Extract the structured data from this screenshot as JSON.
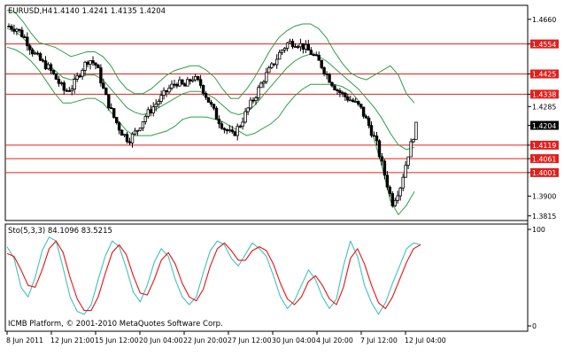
{
  "header": {
    "symbol": "EURUSD,H4",
    "ohlc": "1.4140 1.4241 1.4135 1.4204"
  },
  "watermark": "ICMB Platform, © 2001-2010 MetaQuotes Software Corp.",
  "chart_data": [
    {
      "type": "candlestick",
      "title": "EURUSD,H4",
      "ylim": [
        1.3795,
        1.472
      ],
      "y_ticks": [
        {
          "value": 1.466,
          "label": "1.4660"
        },
        {
          "value": 1.4554,
          "label": "1.4554"
        },
        {
          "value": 1.4425,
          "label": "1.4425"
        },
        {
          "value": 1.4338,
          "label": "1.4338"
        },
        {
          "value": 1.4285,
          "label": "1.4285"
        },
        {
          "value": 1.4204,
          "label": "1.4204"
        },
        {
          "value": 1.4119,
          "label": "1.4119"
        },
        {
          "value": 1.4061,
          "label": "1.4061"
        },
        {
          "value": 1.4001,
          "label": "1.4001"
        },
        {
          "value": 1.39,
          "label": "1.3900"
        },
        {
          "value": 1.3815,
          "label": "1.3815"
        }
      ],
      "horizontal_lines": [
        1.4554,
        1.4425,
        1.4338,
        1.4119,
        1.4061,
        1.4001
      ],
      "highlighted_labels": [
        "1.4554",
        "1.4425",
        "1.4338",
        "1.4119",
        "1.4061",
        "1.4001"
      ],
      "current_price": "1.4204",
      "x_labels": [
        "8 Jun 2011",
        "12 Jun 21:00",
        "15 Jun 12:00",
        "20 Jun 04:00",
        "22 Jun 20:00",
        "27 Jun 12:00",
        "30 Jun 04:00",
        "4 Jul 20:00",
        "7 Jul 12:00",
        "12 Jul 04:00"
      ],
      "price_path": [
        1.463,
        1.462,
        1.458,
        1.452,
        1.448,
        1.445,
        1.44,
        1.435,
        1.437,
        1.444,
        1.449,
        1.446,
        1.434,
        1.425,
        1.418,
        1.414,
        1.418,
        1.424,
        1.428,
        1.432,
        1.436,
        1.439,
        1.437,
        1.441,
        1.438,
        1.431,
        1.424,
        1.419,
        1.416,
        1.421,
        1.428,
        1.434,
        1.441,
        1.446,
        1.452,
        1.456,
        1.456,
        1.454,
        1.451,
        1.447,
        1.441,
        1.436,
        1.433,
        1.431,
        1.428,
        1.421,
        1.413,
        1.4,
        1.387,
        1.394,
        1.408,
        1.42
      ],
      "series": [
        {
          "name": "Bollinger upper",
          "color": "#2e9e48",
          "values": [
            1.47,
            1.469,
            1.465,
            1.46,
            1.456,
            1.455,
            1.454,
            1.452,
            1.45,
            1.451,
            1.452,
            1.452,
            1.45,
            1.446,
            1.44,
            1.436,
            1.434,
            1.434,
            1.436,
            1.439,
            1.442,
            1.444,
            1.445,
            1.446,
            1.446,
            1.444,
            1.441,
            1.436,
            1.432,
            1.432,
            1.436,
            1.441,
            1.447,
            1.453,
            1.458,
            1.461,
            1.463,
            1.464,
            1.464,
            1.462,
            1.458,
            1.452,
            1.447,
            1.443,
            1.441,
            1.44,
            1.442,
            1.444,
            1.446,
            1.442,
            1.434,
            1.43
          ]
        },
        {
          "name": "Bollinger middle",
          "color": "#2e9e48",
          "values": [
            1.462,
            1.461,
            1.458,
            1.454,
            1.45,
            1.447,
            1.444,
            1.441,
            1.44,
            1.441,
            1.442,
            1.442,
            1.44,
            1.436,
            1.432,
            1.428,
            1.426,
            1.425,
            1.426,
            1.428,
            1.43,
            1.432,
            1.434,
            1.435,
            1.435,
            1.434,
            1.432,
            1.429,
            1.426,
            1.425,
            1.426,
            1.429,
            1.433,
            1.437,
            1.441,
            1.445,
            1.448,
            1.45,
            1.451,
            1.45,
            1.448,
            1.445,
            1.442,
            1.439,
            1.436,
            1.432,
            1.428,
            1.423,
            1.417,
            1.412,
            1.41,
            1.411
          ]
        },
        {
          "name": "Bollinger lower",
          "color": "#2e9e48",
          "values": [
            1.454,
            1.453,
            1.451,
            1.448,
            1.444,
            1.439,
            1.434,
            1.43,
            1.43,
            1.431,
            1.432,
            1.432,
            1.43,
            1.426,
            1.422,
            1.418,
            1.416,
            1.416,
            1.416,
            1.417,
            1.418,
            1.42,
            1.423,
            1.424,
            1.424,
            1.424,
            1.423,
            1.422,
            1.42,
            1.418,
            1.416,
            1.417,
            1.419,
            1.421,
            1.424,
            1.429,
            1.433,
            1.436,
            1.438,
            1.438,
            1.438,
            1.438,
            1.437,
            1.435,
            1.431,
            1.424,
            1.414,
            1.402,
            1.388,
            1.382,
            1.386,
            1.392
          ]
        }
      ]
    },
    {
      "type": "line",
      "title": "Sto(5,3,3) 84.1096 83.5215",
      "ylim": [
        0,
        100
      ],
      "y_ticks": [
        {
          "value": 100,
          "label": "100"
        },
        {
          "value": 0,
          "label": "0"
        }
      ],
      "series": [
        {
          "name": "Main",
          "color": "#40c0c0",
          "values": [
            82,
            70,
            40,
            30,
            50,
            78,
            92,
            88,
            60,
            30,
            15,
            12,
            22,
            48,
            72,
            88,
            82,
            60,
            35,
            25,
            42,
            66,
            80,
            72,
            48,
            30,
            22,
            30,
            55,
            78,
            88,
            84,
            70,
            62,
            74,
            86,
            80,
            72,
            52,
            30,
            18,
            26,
            42,
            58,
            48,
            30,
            18,
            28,
            62,
            88,
            72,
            42,
            24,
            12,
            24,
            44,
            62,
            80,
            86,
            84
          ]
        },
        {
          "name": "Signal",
          "color": "#e81010",
          "values": [
            75,
            72,
            58,
            42,
            40,
            58,
            80,
            88,
            76,
            50,
            28,
            16,
            16,
            30,
            54,
            76,
            84,
            74,
            52,
            34,
            32,
            48,
            68,
            76,
            64,
            44,
            30,
            26,
            38,
            62,
            80,
            86,
            78,
            68,
            68,
            78,
            82,
            78,
            64,
            44,
            28,
            22,
            30,
            46,
            52,
            42,
            28,
            22,
            40,
            70,
            80,
            64,
            42,
            24,
            18,
            30,
            48,
            66,
            80,
            84
          ]
        }
      ]
    }
  ]
}
